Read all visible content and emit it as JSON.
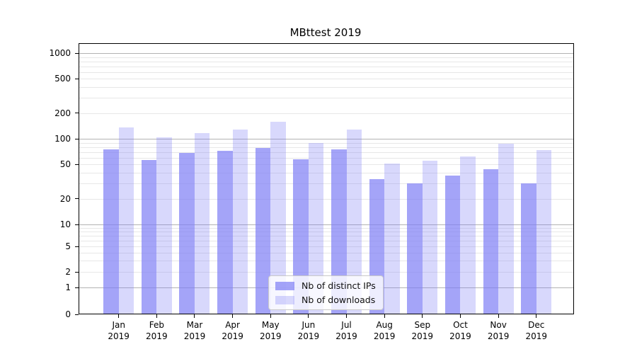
{
  "title": "MBttest 2019",
  "chart_data": {
    "type": "bar",
    "title": "MBttest 2019",
    "categories": [
      "Jan 2019",
      "Feb 2019",
      "Mar 2019",
      "Apr 2019",
      "May 2019",
      "Jun 2019",
      "Jul 2019",
      "Aug 2019",
      "Sep 2019",
      "Oct 2019",
      "Nov 2019",
      "Dec 2019"
    ],
    "x_tick_months": [
      "Jan",
      "Feb",
      "Mar",
      "Apr",
      "May",
      "Jun",
      "Jul",
      "Aug",
      "Sep",
      "Oct",
      "Nov",
      "Dec"
    ],
    "x_tick_year": "2019",
    "series": [
      {
        "name": "Nb of distinct IPs",
        "alpha": 0.7,
        "values": [
          75,
          56,
          68,
          72,
          78,
          58,
          75,
          34,
          30,
          37,
          44,
          30
        ]
      },
      {
        "name": "Nb of downloads",
        "alpha": 0.3,
        "values": [
          135,
          103,
          117,
          129,
          157,
          89,
          128,
          51,
          55,
          62,
          87,
          74
        ]
      }
    ],
    "bar_base_color": "rgb(125,125,245)",
    "series_colors_on_white": [
      "#a4a4f7",
      "#d9d9fb"
    ],
    "yscale": "symlog",
    "y_ticks": [
      1000,
      500,
      200,
      100,
      50,
      20,
      10,
      5,
      2,
      1,
      0
    ],
    "ylim": [
      0,
      1300
    ],
    "grid": true,
    "grid_major_color": "#b2b2b2",
    "grid_minor_color": "#e7e7e7",
    "legend": {
      "position": "lower center",
      "labels": [
        "Nb of distinct IPs",
        "Nb of downloads"
      ]
    }
  }
}
